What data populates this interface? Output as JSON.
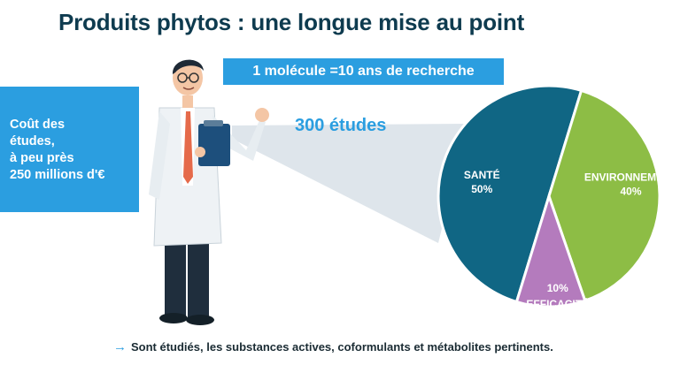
{
  "title": "Produits phytos : une longue mise au point",
  "banner": "1 molécule =10 ans de recherche",
  "cost_text": "Coût des\nétudes,\nà peu près\n250 millions d'€",
  "studies_label": "300 études",
  "footnote": "Sont étudiés, les substances actives, coformulants et métabolites pertinents.",
  "icons": {
    "footnote_arrow": "arrow-right-icon",
    "scientist": "scientist-illustration"
  },
  "colors": {
    "accent_blue": "#2b9ee0",
    "title": "#0e3b4f",
    "sante": "#106684",
    "environnement": "#8dbd45",
    "efficacite": "#b47bbd"
  },
  "chart_data": {
    "type": "pie",
    "title": "",
    "slices": [
      {
        "label": "SANTÉ",
        "value": 50,
        "value_label": "50%",
        "color": "#106684"
      },
      {
        "label": "ENVIRONNEMENT",
        "value": 40,
        "value_label": "40%",
        "color": "#8dbd45"
      },
      {
        "label": "EFFICACITÉ",
        "value": 10,
        "value_label": "10%",
        "color": "#b47bbd"
      }
    ]
  }
}
